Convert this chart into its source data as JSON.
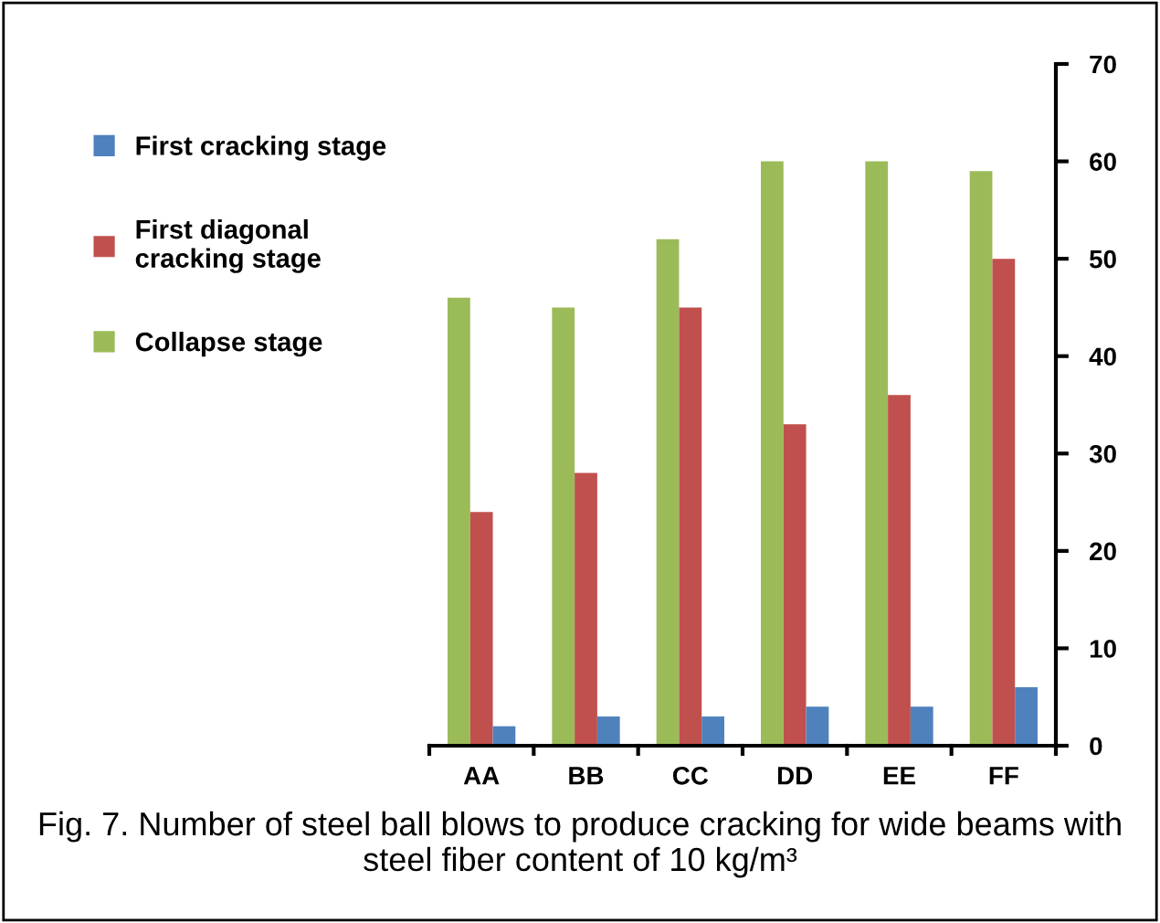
{
  "chart_data": {
    "type": "bar",
    "categories": [
      "AA",
      "BB",
      "CC",
      "DD",
      "EE",
      "FF"
    ],
    "series": [
      {
        "name": "Collapse stage",
        "color": "#9bbb59",
        "values": [
          46,
          45,
          52,
          60,
          60,
          59
        ]
      },
      {
        "name": "First diagonal\ncracking stage",
        "color": "#c0504d",
        "values": [
          24,
          28,
          45,
          33,
          36,
          50
        ]
      },
      {
        "name": "First cracking stage",
        "color": "#4f81bd",
        "values": [
          2,
          3,
          3,
          4,
          4,
          6
        ]
      }
    ],
    "ylim": [
      0,
      70
    ],
    "yticks": [
      0,
      10,
      20,
      30,
      40,
      50,
      60,
      70
    ],
    "grid": false,
    "legend": "left",
    "annotations": [
      "Fig. 7. Number of steel ball blows to produce cracking for wide beams with steel fiber content of 10 kg/m³"
    ]
  }
}
